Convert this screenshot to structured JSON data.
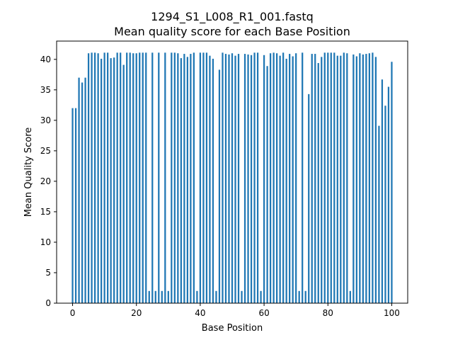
{
  "chart_data": {
    "type": "bar",
    "title": "1294_S1_L008_R1_001.fastq",
    "subtitle": "Mean quality score for each Base Position",
    "xlabel": "Base Position",
    "ylabel": "Mean Quality Score",
    "xlim": [
      -5,
      105
    ],
    "ylim": [
      0,
      43
    ],
    "xticks": [
      0,
      20,
      40,
      60,
      80,
      100
    ],
    "yticks": [
      0,
      5,
      10,
      15,
      20,
      25,
      30,
      35,
      40
    ],
    "grid": false,
    "bar_color": "#1f77b4",
    "x": [
      0,
      1,
      2,
      3,
      4,
      5,
      6,
      7,
      8,
      9,
      10,
      11,
      12,
      13,
      14,
      15,
      16,
      17,
      18,
      19,
      20,
      21,
      22,
      23,
      24,
      25,
      26,
      27,
      28,
      29,
      30,
      31,
      32,
      33,
      34,
      35,
      36,
      37,
      38,
      39,
      40,
      41,
      42,
      43,
      44,
      45,
      46,
      47,
      48,
      49,
      50,
      51,
      52,
      53,
      54,
      55,
      56,
      57,
      58,
      59,
      60,
      61,
      62,
      63,
      64,
      65,
      66,
      67,
      68,
      69,
      70,
      71,
      72,
      73,
      74,
      75,
      76,
      77,
      78,
      79,
      80,
      81,
      82,
      83,
      84,
      85,
      86,
      87,
      88,
      89,
      90,
      91,
      92,
      93,
      94,
      95,
      96,
      97,
      98,
      99,
      100
    ],
    "values": [
      32.0,
      32.0,
      37.0,
      36.2,
      37.0,
      41.0,
      41.1,
      41.1,
      41.0,
      40.1,
      41.1,
      41.1,
      40.2,
      40.3,
      41.1,
      41.1,
      39.1,
      41.1,
      41.1,
      41.0,
      41.0,
      41.1,
      41.1,
      41.1,
      2.0,
      41.1,
      2.0,
      41.1,
      2.0,
      41.1,
      2.0,
      41.1,
      41.1,
      41.0,
      40.2,
      40.9,
      40.4,
      40.9,
      41.1,
      2.0,
      41.1,
      41.1,
      41.1,
      40.6,
      40.1,
      2.0,
      38.3,
      41.1,
      40.9,
      40.8,
      41.0,
      40.6,
      40.9,
      2.0,
      40.9,
      40.8,
      40.7,
      41.1,
      41.1,
      2.0,
      40.7,
      38.9,
      41.0,
      41.1,
      41.0,
      40.6,
      41.1,
      40.1,
      40.9,
      40.5,
      41.0,
      2.0,
      41.1,
      2.0,
      34.3,
      40.9,
      40.9,
      39.4,
      40.4,
      41.1,
      41.1,
      41.1,
      41.1,
      40.6,
      40.6,
      41.1,
      41.0,
      2.0,
      40.8,
      40.5,
      41.0,
      40.8,
      40.9,
      41.0,
      41.1,
      40.4,
      29.1,
      36.7,
      32.4,
      35.5,
      39.6
    ]
  }
}
